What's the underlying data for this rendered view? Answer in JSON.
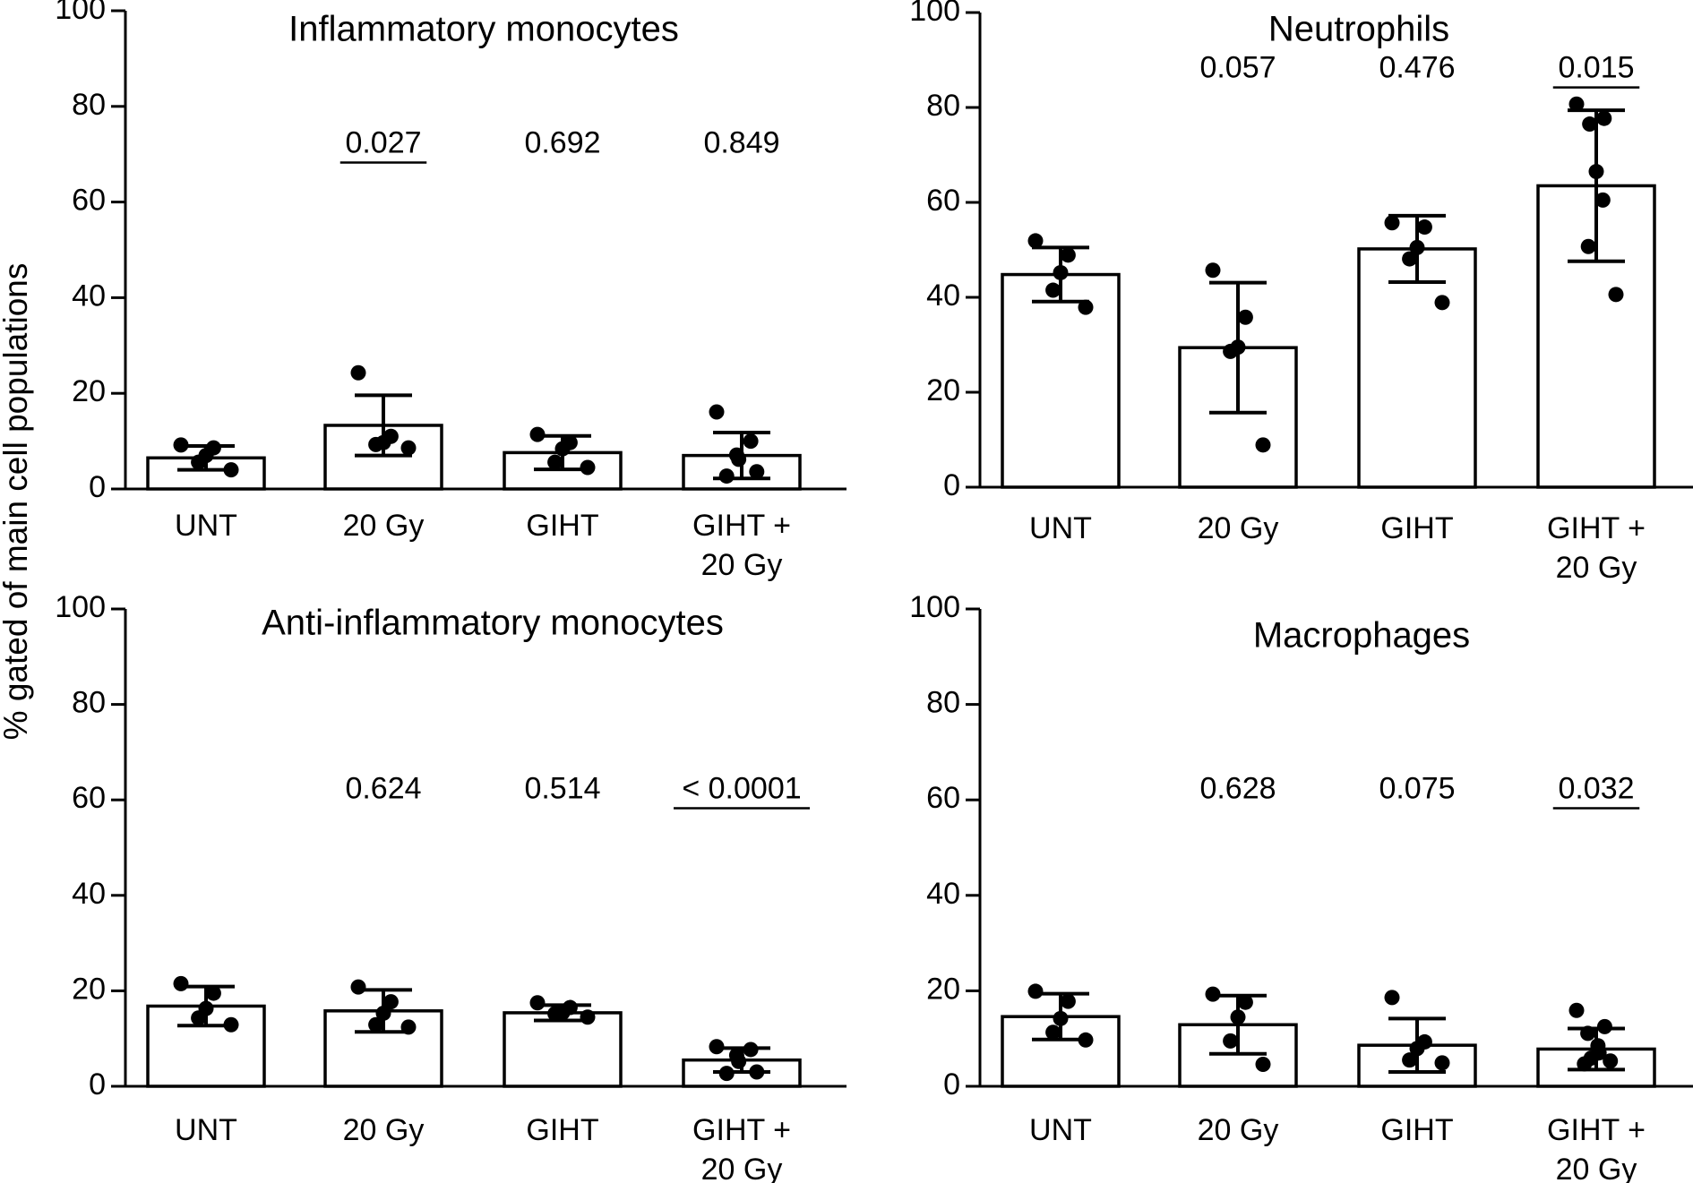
{
  "figure": {
    "ylabel": "% gated of main cell populations"
  },
  "chart_data": [
    {
      "type": "bar",
      "title": "Inflammatory monocytes",
      "categories": [
        "UNT",
        "20 Gy",
        "GIHT",
        "GIHT + 20 Gy"
      ],
      "category_lines": [
        [
          "UNT"
        ],
        [
          "20 Gy"
        ],
        [
          "GIHT"
        ],
        [
          "GIHT +",
          "20 Gy"
        ]
      ],
      "values": [
        6.5,
        13.3,
        7.6,
        7.0
      ],
      "sd": [
        2.5,
        6.3,
        3.5,
        4.8
      ],
      "points": [
        [
          9.2,
          8.6,
          7.0,
          5.6,
          4.0
        ],
        [
          24.3,
          11.0,
          9.7,
          9.3,
          8.6
        ],
        [
          11.4,
          9.7,
          8.4,
          5.6,
          4.5
        ],
        [
          16.1,
          10.0,
          7.1,
          6.2,
          3.6,
          2.7
        ]
      ],
      "pvalues": [
        "",
        "0.027",
        "0.692",
        "0.849"
      ],
      "pvalue_underlined": [
        false,
        true,
        false,
        false
      ],
      "ylim": [
        0,
        100
      ],
      "yticks": [
        0,
        20,
        40,
        60,
        80,
        100
      ],
      "pvalue_level": 72
    },
    {
      "type": "bar",
      "title": "Neutrophils",
      "categories": [
        "UNT",
        "20 Gy",
        "GIHT",
        "GIHT + 20 Gy"
      ],
      "category_lines": [
        [
          "UNT"
        ],
        [
          "20 Gy"
        ],
        [
          "GIHT"
        ],
        [
          "GIHT +",
          "20 Gy"
        ]
      ],
      "values": [
        44.8,
        29.4,
        50.2,
        63.5
      ],
      "sd": [
        5.7,
        13.7,
        7.0,
        15.9
      ],
      "points": [
        [
          51.9,
          48.9,
          45.2,
          41.5,
          37.9
        ],
        [
          45.7,
          35.8,
          29.5,
          28.6,
          8.9
        ],
        [
          55.7,
          54.8,
          50.5,
          48.1,
          38.9
        ],
        [
          80.7,
          77.7,
          76.5,
          66.5,
          60.5,
          50.7,
          40.6
        ]
      ],
      "pvalues": [
        "",
        "0.057",
        "0.476",
        "0.015"
      ],
      "pvalue_underlined": [
        false,
        false,
        false,
        true
      ],
      "ylim": [
        0,
        100
      ],
      "yticks": [
        0,
        20,
        40,
        60,
        80,
        100
      ],
      "pvalue_level": 88
    },
    {
      "type": "bar",
      "title": "Anti-inflammatory monocytes",
      "categories": [
        "UNT",
        "20 Gy",
        "GIHT",
        "GIHT + 20 Gy"
      ],
      "category_lines": [
        [
          "UNT"
        ],
        [
          "20 Gy"
        ],
        [
          "GIHT"
        ],
        [
          "GIHT +",
          "20 Gy"
        ]
      ],
      "values": [
        16.8,
        15.8,
        15.4,
        5.5
      ],
      "sd": [
        4.1,
        4.4,
        1.6,
        2.5
      ],
      "points": [
        [
          21.5,
          19.5,
          16.3,
          14.3,
          12.9
        ],
        [
          20.8,
          17.7,
          15.3,
          12.9,
          12.4
        ],
        [
          17.5,
          16.5,
          15.4,
          15.2,
          14.5
        ],
        [
          8.3,
          7.7,
          6.5,
          5.2,
          3.0,
          2.7
        ]
      ],
      "pvalues": [
        "",
        "0.624",
        "0.514",
        "< 0.0001"
      ],
      "pvalue_underlined": [
        false,
        false,
        false,
        true
      ],
      "ylim": [
        0,
        100
      ],
      "yticks": [
        0,
        20,
        40,
        60,
        80,
        100
      ],
      "pvalue_level": 62
    },
    {
      "type": "bar",
      "title": "Macrophages",
      "categories": [
        "UNT",
        "20 Gy",
        "GIHT",
        "GIHT + 20 Gy"
      ],
      "category_lines": [
        [
          "UNT"
        ],
        [
          "20 Gy"
        ],
        [
          "GIHT"
        ],
        [
          "GIHT +",
          "20 Gy"
        ]
      ],
      "values": [
        14.6,
        12.9,
        8.6,
        7.8
      ],
      "sd": [
        4.8,
        6.1,
        5.6,
        4.3
      ],
      "points": [
        [
          19.9,
          17.8,
          14.2,
          11.3,
          9.7
        ],
        [
          19.3,
          17.6,
          14.5,
          9.5,
          4.6
        ],
        [
          18.6,
          9.3,
          7.9,
          5.5,
          4.9
        ],
        [
          15.9,
          12.5,
          11.1,
          8.5,
          7.0,
          5.9,
          5.3,
          4.7
        ]
      ],
      "pvalues": [
        "",
        "0.628",
        "0.075",
        "0.032"
      ],
      "pvalue_underlined": [
        false,
        false,
        false,
        true
      ],
      "ylim": [
        0,
        100
      ],
      "yticks": [
        0,
        20,
        40,
        60,
        80,
        100
      ],
      "pvalue_level": 62
    }
  ]
}
